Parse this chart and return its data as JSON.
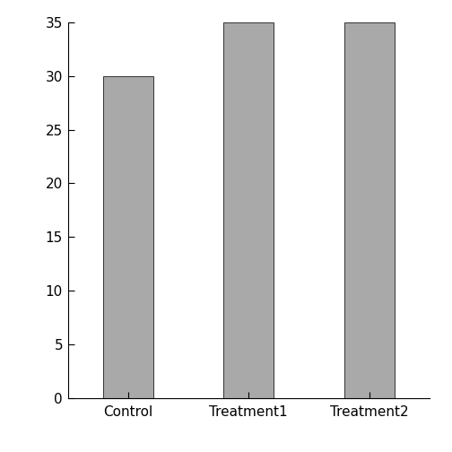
{
  "categories": [
    "Control",
    "Treatment1",
    "Treatment2"
  ],
  "values": [
    30,
    35,
    35
  ],
  "bar_color": "#a9a9a9",
  "bar_edgecolor": "#333333",
  "ylim": [
    0,
    35
  ],
  "yticks": [
    0,
    5,
    10,
    15,
    20,
    25,
    30,
    35
  ],
  "background_color": "#ffffff",
  "bar_width": 0.5,
  "tick_fontsize": 11,
  "label_fontsize": 11,
  "figsize": [
    5.04,
    5.04
  ],
  "dpi": 100
}
